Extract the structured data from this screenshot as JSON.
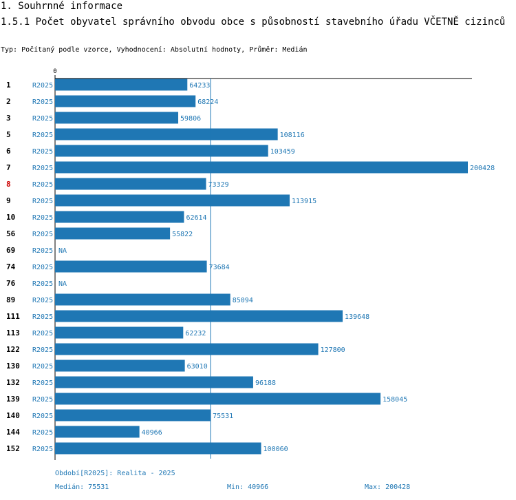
{
  "section_title": "1. Souhrnné informace",
  "chart_title": "1.5.1 Počet obyvatel správního obvodu obce s působností stavebního úřadu VČETNĚ cizinců",
  "subtitle": "Typ: Počítaný podle vzorce, Vyhodnocení: Absolutní hodnoty, Průměr: Medián",
  "colors": {
    "bar": "#1f77b4",
    "label": "#1f77b4",
    "highlight": "#cc0000",
    "text": "#000000"
  },
  "chart_data": {
    "type": "bar",
    "orientation": "horizontal",
    "title": "1.5.1 Počet obyvatel správního obvodu obce s působností stavebního úřadu VČETNĚ cizinců",
    "axis_zero_label": "0",
    "xlim": [
      0,
      200428
    ],
    "median_line": 75531,
    "highlight_category": "8",
    "rows": [
      {
        "id": "1",
        "period": "R2025",
        "value": 64233
      },
      {
        "id": "2",
        "period": "R2025",
        "value": 68224
      },
      {
        "id": "3",
        "period": "R2025",
        "value": 59806
      },
      {
        "id": "5",
        "period": "R2025",
        "value": 108116
      },
      {
        "id": "6",
        "period": "R2025",
        "value": 103459
      },
      {
        "id": "7",
        "period": "R2025",
        "value": 200428
      },
      {
        "id": "8",
        "period": "R2025",
        "value": 73329
      },
      {
        "id": "9",
        "period": "R2025",
        "value": 113915
      },
      {
        "id": "10",
        "period": "R2025",
        "value": 62614
      },
      {
        "id": "56",
        "period": "R2025",
        "value": 55822
      },
      {
        "id": "69",
        "period": "R2025",
        "value": null,
        "label": "NA"
      },
      {
        "id": "74",
        "period": "R2025",
        "value": 73684
      },
      {
        "id": "76",
        "period": "R2025",
        "value": null,
        "label": "NA"
      },
      {
        "id": "89",
        "period": "R2025",
        "value": 85094
      },
      {
        "id": "111",
        "period": "R2025",
        "value": 139648
      },
      {
        "id": "113",
        "period": "R2025",
        "value": 62232
      },
      {
        "id": "122",
        "period": "R2025",
        "value": 127800
      },
      {
        "id": "130",
        "period": "R2025",
        "value": 63010
      },
      {
        "id": "132",
        "period": "R2025",
        "value": 96188
      },
      {
        "id": "139",
        "period": "R2025",
        "value": 158045
      },
      {
        "id": "140",
        "period": "R2025",
        "value": 75531
      },
      {
        "id": "144",
        "period": "R2025",
        "value": 40966
      },
      {
        "id": "152",
        "period": "R2025",
        "value": 100060
      }
    ]
  },
  "footer": {
    "period_note": "Období[R2025]: Realita - 2025",
    "median": "Medián: 75531",
    "min": "Min: 40966",
    "max": "Max: 200428"
  }
}
